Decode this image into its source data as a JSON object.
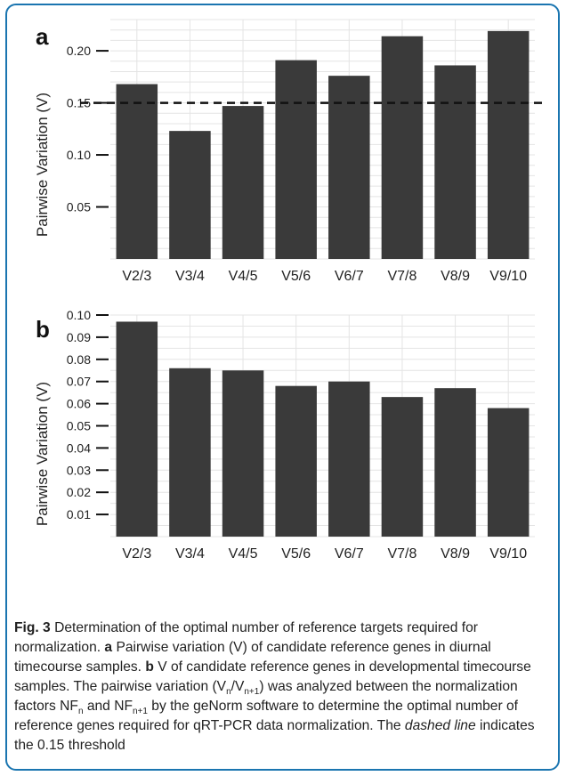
{
  "chart_data": [
    {
      "type": "bar",
      "panel_label": "a",
      "ylabel": "Pairwise Variation (V)",
      "categories": [
        "V2/3",
        "V3/4",
        "V4/5",
        "V5/6",
        "V6/7",
        "V7/8",
        "V8/9",
        "V9/10"
      ],
      "values": [
        0.168,
        0.123,
        0.147,
        0.191,
        0.176,
        0.214,
        0.186,
        0.219
      ],
      "yticks": [
        0.05,
        0.1,
        0.15,
        0.2
      ],
      "ytick_labels": [
        "0.05",
        "0.10",
        "0.15",
        "0.20"
      ],
      "ylim": [
        0.0,
        0.23
      ],
      "threshold": 0.15,
      "grid": true,
      "bar_color": "#3a3a3a"
    },
    {
      "type": "bar",
      "panel_label": "b",
      "ylabel": "Pairwise Variation (V)",
      "categories": [
        "V2/3",
        "V3/4",
        "V4/5",
        "V5/6",
        "V6/7",
        "V7/8",
        "V8/9",
        "V9/10"
      ],
      "values": [
        0.097,
        0.076,
        0.075,
        0.068,
        0.07,
        0.063,
        0.067,
        0.058
      ],
      "yticks": [
        0.01,
        0.02,
        0.03,
        0.04,
        0.05,
        0.06,
        0.07,
        0.08,
        0.09,
        0.1
      ],
      "ytick_labels": [
        "0.01",
        "0.02",
        "0.03",
        "0.04",
        "0.05",
        "0.06",
        "0.07",
        "0.08",
        "0.09",
        "0.10"
      ],
      "ylim": [
        0.0,
        0.1
      ],
      "grid": true,
      "bar_color": "#3a3a3a"
    }
  ],
  "caption": {
    "fig_label": "Fig. 3",
    "title": "Determination of the optimal number of reference targets required for normalization.",
    "a_label": "a",
    "a_text": "Pairwise variation (V) of candidate reference genes in diurnal timecourse samples.",
    "b_label": "b",
    "b_text": "V of candidate reference genes in developmental timecourse samples. The pairwise variation (",
    "v_n": "V",
    "sub_n": "n",
    "slash": "/",
    "v_n1": "V",
    "sub_n1": "n+1",
    "mid1": ") was analyzed between the normalization factors ",
    "nf_n": "NF",
    "sub_nf_n": "n",
    "and": " and ",
    "nf_n1": "NF",
    "sub_nf_n1": "n+1",
    "mid2": " by the geNorm software to determine the optimal number of reference genes required for qRT-PCR data normalization. The ",
    "dashed_line": "dashed line",
    "end": " indicates the 0.15 threshold"
  },
  "colors": {
    "border": "#1a75b0",
    "bars": "#3a3a3a",
    "grid": "#e4e4e4"
  }
}
